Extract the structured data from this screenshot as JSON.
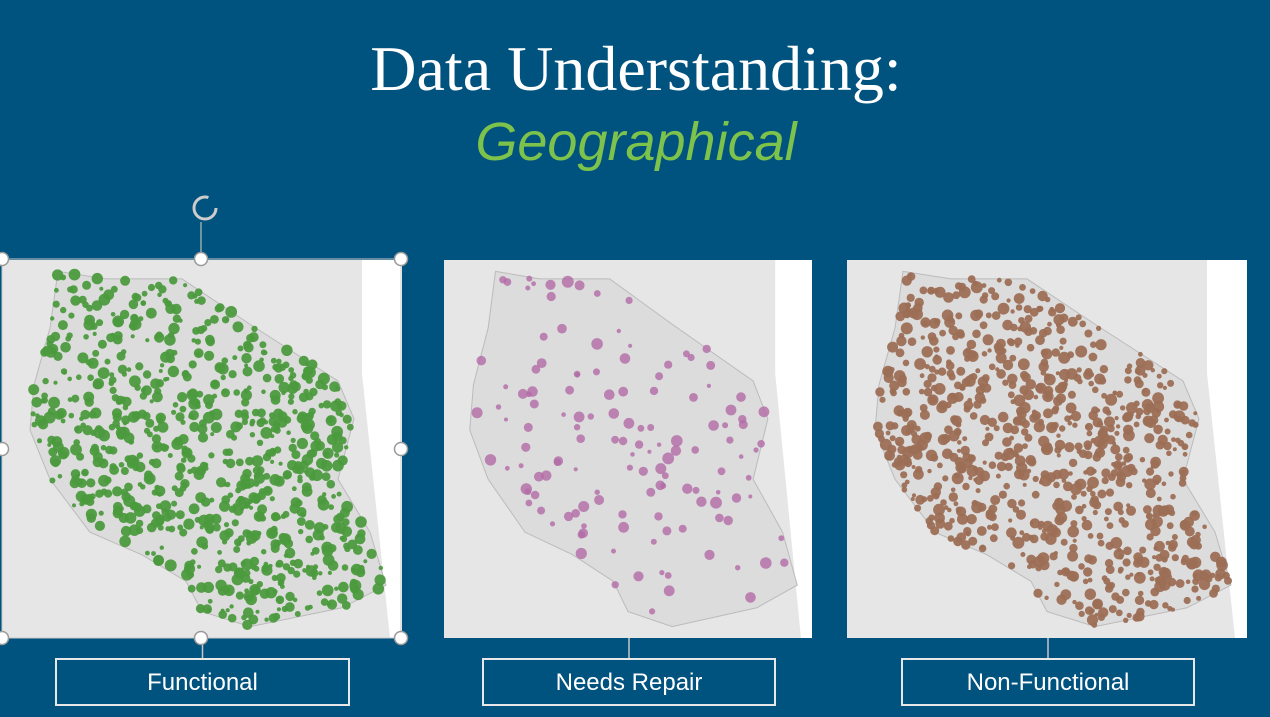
{
  "header": {
    "title": "Data Understanding:",
    "subtitle": "Geographical"
  },
  "panels": [
    {
      "label": "Functional",
      "color": "#4c9a3e"
    },
    {
      "label": "Needs Repair",
      "color": "#b26aa6"
    },
    {
      "label": "Non-Functional",
      "color": "#9c6e55"
    }
  ]
}
